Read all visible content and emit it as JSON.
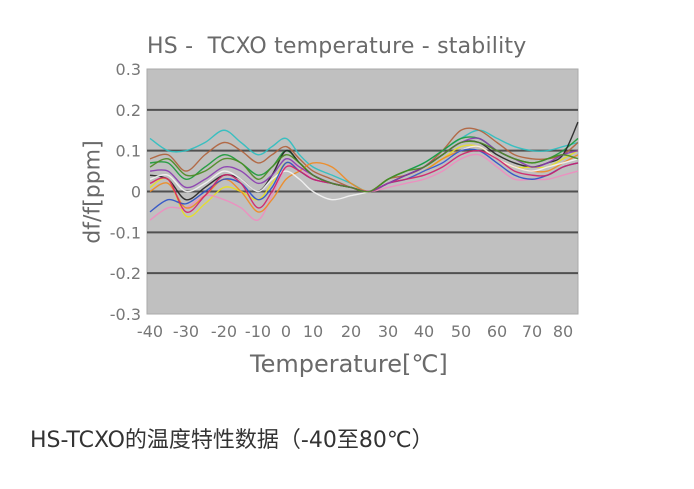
{
  "caption": "HS-TCXO的温度特性数据（-40至80℃）",
  "chart_data": {
    "type": "line",
    "title": "HS -  TCXO temperature - stability",
    "xlabel": "Temperature[℃]",
    "ylabel": "df/f[ppm]",
    "xlim": [
      -40,
      85
    ],
    "ylim": [
      -0.3,
      0.3
    ],
    "x_ticks": [
      -40,
      -30,
      -20,
      -10,
      0,
      10,
      20,
      30,
      40,
      50,
      60,
      70,
      80
    ],
    "x_tick_labels": [
      "-40",
      "-30",
      "-20",
      "-10",
      "0",
      "10",
      "20",
      "30",
      "40",
      "50",
      "60",
      "70",
      "80"
    ],
    "y_ticks": [
      0.3,
      0.2,
      0.1,
      0,
      -0.1,
      -0.2,
      -0.3
    ],
    "y_tick_labels": [
      "0.3",
      "0.2",
      "0.1",
      "0",
      "-0.1",
      "-0.2",
      "-0.3"
    ],
    "grid": "horizontal",
    "plot_background": "#c0c0c0",
    "gridline_color": "#505050",
    "x": [
      -40,
      -35,
      -30,
      -25,
      -20,
      -15,
      -10,
      -5,
      0,
      5,
      10,
      15,
      20,
      25,
      30,
      35,
      40,
      45,
      50,
      55,
      60,
      65,
      70,
      75,
      80,
      85
    ],
    "series": [
      {
        "color": "#2bbfc0",
        "values": [
          0.13,
          0.1,
          0.1,
          0.12,
          0.15,
          0.12,
          0.09,
          0.11,
          0.13,
          0.09,
          0.06,
          0.04,
          0.02,
          0,
          0.03,
          0.05,
          0.07,
          0.1,
          0.13,
          0.15,
          0.13,
          0.11,
          0.1,
          0.1,
          0.11,
          0.12
        ]
      },
      {
        "color": "#b0603a",
        "values": [
          0.08,
          0.09,
          0.05,
          0.09,
          0.12,
          0.1,
          0.07,
          0.09,
          0.11,
          0.08,
          0.05,
          0.03,
          0.01,
          0,
          0.03,
          0.04,
          0.06,
          0.1,
          0.15,
          0.15,
          0.12,
          0.09,
          0.08,
          0.08,
          0.09,
          0.12
        ]
      },
      {
        "color": "#1a9a3a",
        "values": [
          0.07,
          0.07,
          0.03,
          0.06,
          0.09,
          0.07,
          0.04,
          0.06,
          0.1,
          0.07,
          0.04,
          0.02,
          0.01,
          0,
          0.03,
          0.05,
          0.07,
          0.1,
          0.13,
          0.13,
          0.1,
          0.08,
          0.07,
          0.08,
          0.1,
          0.13
        ]
      },
      {
        "color": "#222222",
        "values": [
          0.04,
          0.03,
          -0.02,
          0.01,
          0.04,
          0.03,
          0.0,
          0.04,
          0.1,
          0.07,
          0.04,
          0.02,
          0.01,
          0,
          0.02,
          0.04,
          0.06,
          0.09,
          0.12,
          0.12,
          0.09,
          0.07,
          0.06,
          0.07,
          0.09,
          0.17
        ]
      },
      {
        "color": "#e8e020",
        "values": [
          0.01,
          0.03,
          -0.06,
          -0.03,
          0.01,
          0.0,
          -0.02,
          0.02,
          0.07,
          0.05,
          0.03,
          0.02,
          0.01,
          0,
          0.02,
          0.03,
          0.05,
          0.08,
          0.11,
          0.11,
          0.08,
          0.06,
          0.06,
          0.06,
          0.08,
          0.1
        ]
      },
      {
        "color": "#f08cc0",
        "values": [
          -0.07,
          -0.04,
          -0.04,
          -0.01,
          -0.02,
          -0.04,
          -0.07,
          -0.01,
          0.06,
          0.06,
          0.03,
          0.02,
          0.01,
          0,
          0.01,
          0.02,
          0.03,
          0.05,
          0.08,
          0.09,
          0.06,
          0.03,
          0.03,
          0.03,
          0.04,
          0.05
        ]
      },
      {
        "color": "#f08a20",
        "values": [
          0.0,
          0.02,
          -0.04,
          -0.01,
          0.03,
          0.0,
          -0.05,
          -0.02,
          0.03,
          0.05,
          0.07,
          0.06,
          0.02,
          0,
          0.02,
          0.03,
          0.05,
          0.08,
          0.1,
          0.11,
          0.08,
          0.06,
          0.05,
          0.05,
          0.07,
          0.09
        ]
      },
      {
        "color": "#f4f4f4",
        "values": [
          0.03,
          0.04,
          0.0,
          0.02,
          0.05,
          0.03,
          0.0,
          0.03,
          0.05,
          0.03,
          0.0,
          -0.02,
          -0.01,
          0,
          0.02,
          0.03,
          0.05,
          0.07,
          0.1,
          0.11,
          0.08,
          0.06,
          0.05,
          0.06,
          0.07,
          0.08
        ]
      },
      {
        "color": "#2a50c8",
        "values": [
          -0.05,
          -0.02,
          -0.03,
          0.0,
          0.03,
          0.02,
          -0.02,
          0.01,
          0.07,
          0.05,
          0.03,
          0.02,
          0.01,
          0,
          0.02,
          0.03,
          0.05,
          0.07,
          0.1,
          0.1,
          0.07,
          0.04,
          0.03,
          0.04,
          0.06,
          0.07
        ]
      },
      {
        "color": "#d0206a",
        "values": [
          0.02,
          0.03,
          -0.05,
          -0.01,
          0.04,
          0.02,
          -0.04,
          0.0,
          0.06,
          0.05,
          0.03,
          0.02,
          0.01,
          0,
          0.02,
          0.03,
          0.04,
          0.06,
          0.09,
          0.1,
          0.08,
          0.05,
          0.04,
          0.04,
          0.06,
          0.07
        ]
      },
      {
        "color": "#8a3ab0",
        "values": [
          0.05,
          0.05,
          0.01,
          0.03,
          0.06,
          0.05,
          0.02,
          0.04,
          0.08,
          0.06,
          0.04,
          0.02,
          0.01,
          0,
          0.02,
          0.04,
          0.06,
          0.09,
          0.12,
          0.13,
          0.1,
          0.08,
          0.06,
          0.07,
          0.09,
          0.1
        ]
      },
      {
        "color": "#4a8a20",
        "values": [
          0.06,
          0.08,
          0.04,
          0.05,
          0.08,
          0.07,
          0.03,
          0.06,
          0.09,
          0.07,
          0.04,
          0.02,
          0.01,
          0,
          0.03,
          0.05,
          0.06,
          0.09,
          0.12,
          0.12,
          0.1,
          0.08,
          0.07,
          0.08,
          0.09,
          0.08
        ]
      }
    ]
  }
}
